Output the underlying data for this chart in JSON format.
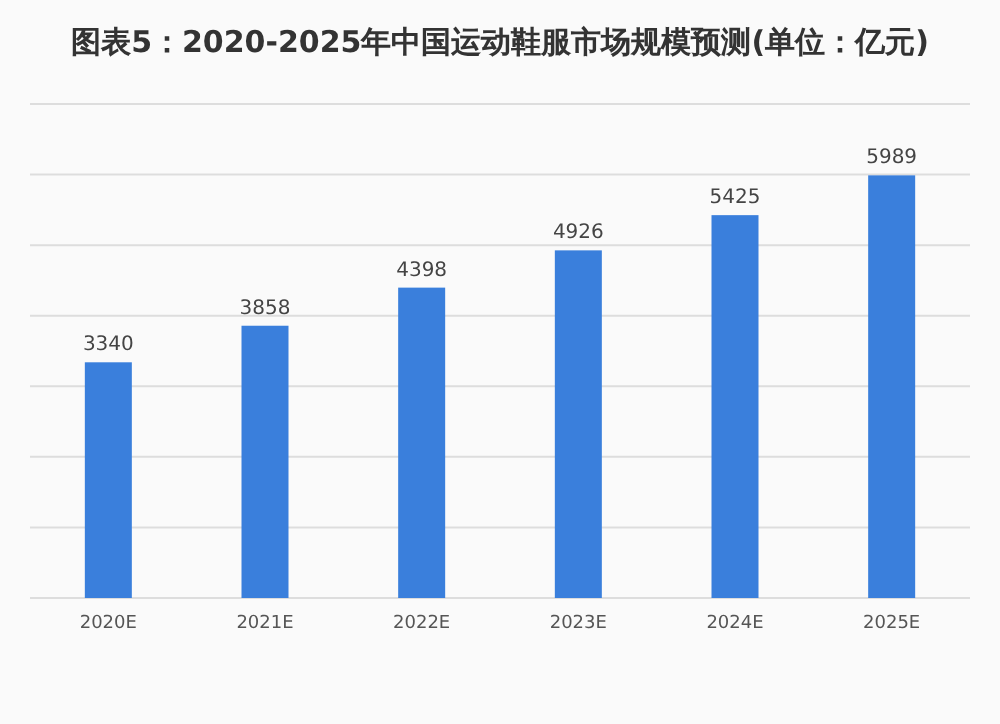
{
  "chart_data": {
    "type": "bar",
    "title": "图表5：2020-2025年中国运动鞋服市场规模预测(单位：亿元)",
    "categories": [
      "2020E",
      "2021E",
      "2022E",
      "2023E",
      "2024E",
      "2025E"
    ],
    "values": [
      3340,
      3858,
      4398,
      4926,
      5425,
      5989
    ],
    "color": "#3a7fdc",
    "data_labels": true,
    "ylim": [
      0,
      7000
    ],
    "yticks": [
      {
        "value": 0,
        "label": null
      },
      {
        "value": 1000,
        "label": null
      },
      {
        "value": 2000,
        "label": null
      },
      {
        "value": 3000,
        "label": null
      },
      {
        "value": 4000,
        "label": null
      },
      {
        "value": 5000,
        "label": null
      },
      {
        "value": 6000,
        "label": null
      },
      {
        "value": 7000,
        "label": null
      }
    ],
    "grid": "y",
    "tick_labels": "x"
  }
}
